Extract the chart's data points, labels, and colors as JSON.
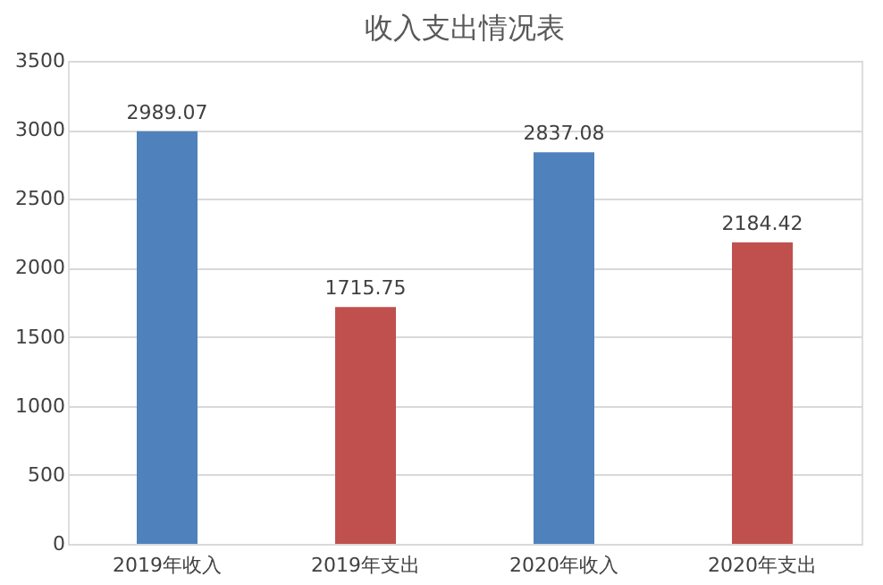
{
  "chart_data": {
    "type": "bar",
    "title": "收入支出情况表",
    "categories": [
      "2019年收入",
      "2019年支出",
      "2020年收入",
      "2020年支出"
    ],
    "values": [
      2989.07,
      1715.75,
      2837.08,
      2184.42
    ],
    "colors": [
      "#4f81bd",
      "#c0504d",
      "#4f81bd",
      "#c0504d"
    ],
    "ylim": [
      0,
      3500
    ],
    "yticks": [
      0,
      500,
      1000,
      1500,
      2000,
      2500,
      3000,
      3500
    ],
    "grid": "y",
    "data_labels": true,
    "legend": false
  }
}
